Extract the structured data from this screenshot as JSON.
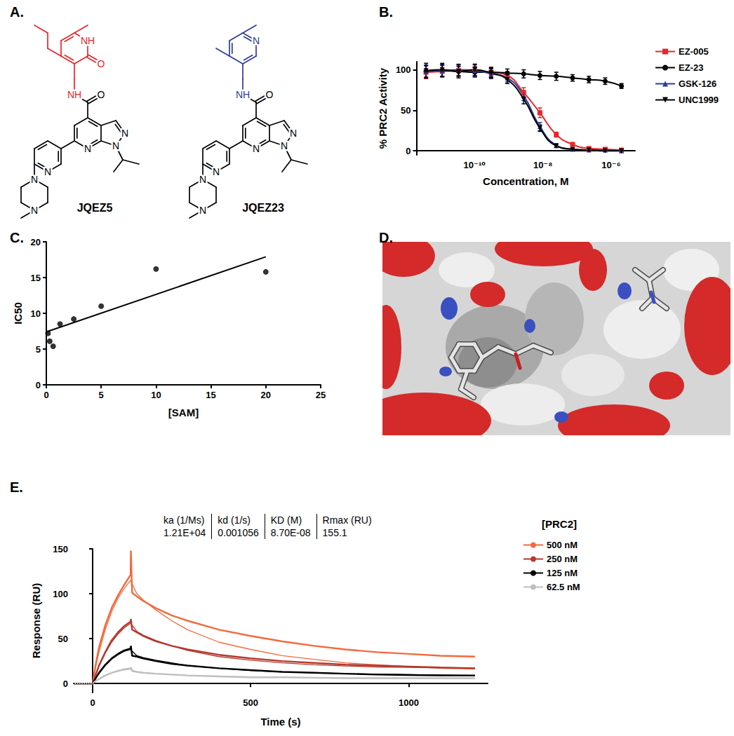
{
  "panel_labels": [
    "A.",
    "B.",
    "C.",
    "D.",
    "E."
  ],
  "structures": [
    {
      "name": "JQEZ5",
      "color": "#e8262a",
      "atom_labels": [
        "NH",
        "O",
        "NH",
        "O",
        "N",
        "N",
        "N",
        "N",
        "N",
        "N"
      ]
    },
    {
      "name": "JQEZ23",
      "color": "#2e3a97",
      "atom_labels": [
        "N",
        "NH",
        "O",
        "N",
        "N",
        "N",
        "N",
        "N",
        "N"
      ]
    }
  ],
  "chart_data": [
    {
      "type": "line",
      "log": "x",
      "xlabel": "Concentration, M",
      "ylabel": "% PRC2 Activity",
      "x": [
        3.8e-12,
        1.13e-11,
        3.4e-11,
        1.02e-10,
        3.05e-10,
        9.1e-10,
        2.74e-09,
        8.2e-09,
        2.47e-08,
        7.4e-08,
        2.22e-07,
        6.67e-07,
        2e-06
      ],
      "xlim": [
        2e-12,
        5e-06
      ],
      "xticks": [
        {
          "value": 1e-10,
          "label": "10⁻¹⁰"
        },
        {
          "value": 1e-08,
          "label": "10⁻⁸"
        },
        {
          "value": 1e-06,
          "label": "10⁻⁶"
        }
      ],
      "ylim": [
        -5,
        110
      ],
      "yticks": [
        0,
        50,
        100
      ],
      "grid": false,
      "legend": "right",
      "reference_line": 0,
      "series": [
        {
          "name": "EZ-005",
          "color": "#e8262a",
          "marker": "square",
          "values": [
            97,
            98,
            99,
            98,
            97,
            93,
            72,
            47,
            20,
            8,
            3,
            2,
            1
          ],
          "errors": [
            8,
            7,
            7,
            6,
            6,
            5,
            6,
            6,
            3,
            2,
            1,
            1,
            1
          ]
        },
        {
          "name": "EZ-23",
          "color": "#000000",
          "marker": "circle",
          "values": [
            98,
            99,
            98,
            97,
            97,
            96,
            95,
            93,
            92,
            90,
            88,
            86,
            80
          ],
          "errors": [
            7,
            7,
            6,
            6,
            6,
            5,
            5,
            5,
            5,
            4,
            4,
            4,
            3
          ]
        },
        {
          "name": "GSK-126",
          "color": "#2e3a97",
          "marker": "triangle",
          "values": [
            98,
            99,
            100,
            99,
            95,
            90,
            68,
            30,
            7,
            2,
            1,
            1,
            0
          ],
          "errors": [
            8,
            8,
            7,
            7,
            6,
            5,
            6,
            5,
            2,
            1,
            1,
            1,
            1
          ]
        },
        {
          "name": "UNC1999",
          "color": "#000000",
          "marker": "triangle-down",
          "values": [
            99,
            100,
            98,
            100,
            96,
            88,
            64,
            28,
            6,
            2,
            1,
            0,
            0
          ],
          "errors": [
            9,
            8,
            8,
            7,
            6,
            5,
            6,
            4,
            2,
            1,
            1,
            1,
            1
          ]
        }
      ]
    },
    {
      "type": "scatter",
      "xlabel": "[SAM]",
      "ylabel": "IC50",
      "x": [
        0.156,
        0.313,
        0.625,
        1.25,
        2.5,
        5,
        10,
        20
      ],
      "values": [
        7.2,
        6.1,
        5.4,
        8.5,
        9.2,
        11,
        16.2,
        15.8
      ],
      "color": "#000000",
      "marker": "circle",
      "xlim": [
        0,
        25
      ],
      "xticks": [
        0,
        5,
        10,
        15,
        20,
        25
      ],
      "ylim": [
        0,
        20
      ],
      "yticks": [
        0,
        5,
        10,
        15,
        20
      ],
      "grid": false,
      "fit_line": {
        "x": [
          0,
          20
        ],
        "values": [
          7.4,
          17.9
        ]
      }
    },
    {
      "type": "line",
      "xlabel": "Time (s)",
      "ylabel": "Response (RU)",
      "x": [
        -60,
        -10,
        0,
        10,
        20,
        40,
        60,
        80,
        100,
        120,
        121,
        125,
        140,
        160,
        200,
        250,
        300,
        400,
        500,
        600,
        700,
        800,
        900,
        1000,
        1100,
        1210
      ],
      "xlim": [
        -60,
        1250
      ],
      "xticks": [
        0,
        500,
        1000
      ],
      "ylim": [
        -10,
        150
      ],
      "yticks": [
        0,
        50,
        100,
        150
      ],
      "grid": false,
      "reference_line": 0,
      "legend": "right",
      "legend_title": "[PRC2]",
      "table": {
        "columns": [
          "ka (1/Ms)",
          "kd (1/s)",
          "KD (M)",
          "Rmax (RU)"
        ],
        "row": [
          "1.21E+04",
          "0.001056",
          "8.70E-08",
          "155.1"
        ]
      },
      "series": [
        {
          "name": "500 nM",
          "color": "#f4693c",
          "values": [
            0,
            0,
            0,
            22,
            40,
            65,
            84,
            98,
            110,
            121,
            148,
            101,
            97,
            92,
            84,
            76,
            70,
            60,
            53,
            47,
            42,
            38,
            35,
            33,
            31,
            30
          ],
          "fit": [
            0,
            0,
            0,
            19,
            35,
            60,
            80,
            95,
            106,
            115,
            114,
            111,
            100,
            93,
            82,
            70,
            60,
            46,
            38,
            31,
            27,
            23,
            21,
            19,
            17,
            16
          ]
        },
        {
          "name": "250 nM",
          "color": "#b23a2f",
          "values": [
            0,
            0,
            0,
            10,
            20,
            35,
            48,
            57,
            64,
            69,
            72,
            60,
            57,
            53,
            47,
            42,
            38,
            32,
            28,
            25,
            23,
            21,
            20,
            19,
            18,
            17
          ],
          "fit": [
            0,
            0,
            0,
            10,
            19,
            34,
            46,
            55,
            62,
            67,
            67,
            65,
            58,
            54,
            48,
            42,
            37,
            30,
            26,
            23,
            21,
            19.5,
            18.5,
            18,
            17.5,
            17
          ]
        },
        {
          "name": "125 nM",
          "color": "#000000",
          "values": [
            0,
            0,
            0,
            6,
            12,
            21,
            28,
            33,
            37,
            39,
            42,
            31,
            30,
            28,
            25,
            22,
            20,
            17,
            15,
            13,
            12,
            11,
            10,
            9.5,
            9,
            9
          ],
          "fit": [
            0,
            0,
            0,
            6,
            11,
            20,
            27,
            32,
            36,
            38,
            38,
            36,
            31,
            29,
            26,
            23,
            20,
            17,
            14.5,
            13,
            12,
            11,
            10.5,
            10,
            9.5,
            9
          ]
        },
        {
          "name": "62.5 nM",
          "color": "#bfbfbf",
          "values": [
            0,
            0,
            0,
            3,
            5,
            9,
            12,
            14,
            16,
            17,
            18,
            14,
            13,
            12,
            11,
            10,
            9,
            8,
            7,
            7,
            6.5,
            6,
            6,
            6,
            6,
            6
          ],
          "fit": [
            0,
            0,
            0,
            3,
            5,
            9,
            12,
            14,
            15,
            16,
            16,
            15,
            13,
            12,
            11,
            10,
            9,
            8,
            7.5,
            7,
            6.5,
            6.2,
            6,
            6,
            6,
            6
          ]
        }
      ]
    }
  ]
}
